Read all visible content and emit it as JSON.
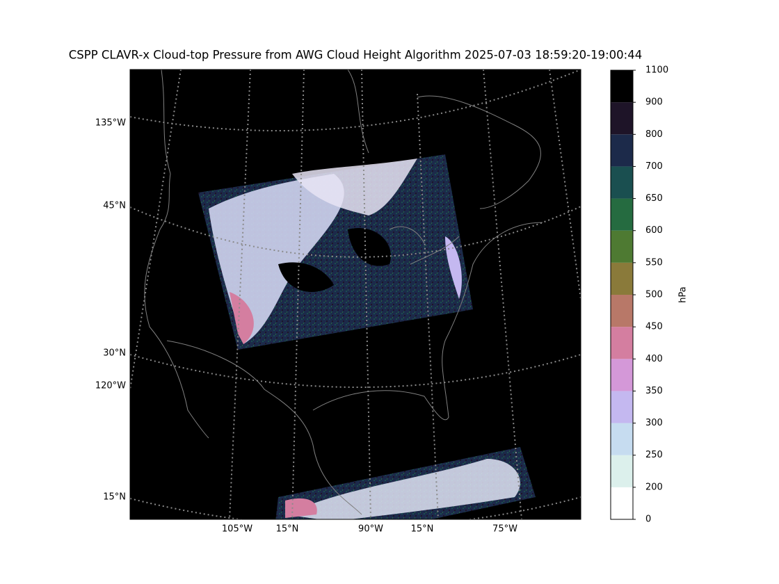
{
  "title": "CSPP CLAVR-x Cloud-top Pressure from AWG Cloud Height Algorithm 2025-07-03 18:59:20-19:00:44",
  "map": {
    "left_labels": [
      "135°W",
      "45°N",
      "30°N",
      "120°W",
      "15°N"
    ],
    "bottom_labels": [
      "105°W",
      "15°N",
      "90°W",
      "15°N",
      "75°W"
    ],
    "background": "#000000",
    "graticule_color": "#8a8a8a",
    "coast_color": "#808080"
  },
  "colorbar": {
    "label": "hPa",
    "ticks": [
      0,
      200,
      250,
      300,
      350,
      400,
      450,
      500,
      550,
      600,
      650,
      700,
      800,
      900,
      1100
    ],
    "colors": [
      "#ffffff",
      "#dcf0ec",
      "#c6dcf0",
      "#c4b8f0",
      "#d498d8",
      "#d47ea0",
      "#b87868",
      "#8a7a3a",
      "#4e7a32",
      "#256b40",
      "#1a4f50",
      "#1c2a4a",
      "#1e1428",
      "#000000"
    ]
  }
}
